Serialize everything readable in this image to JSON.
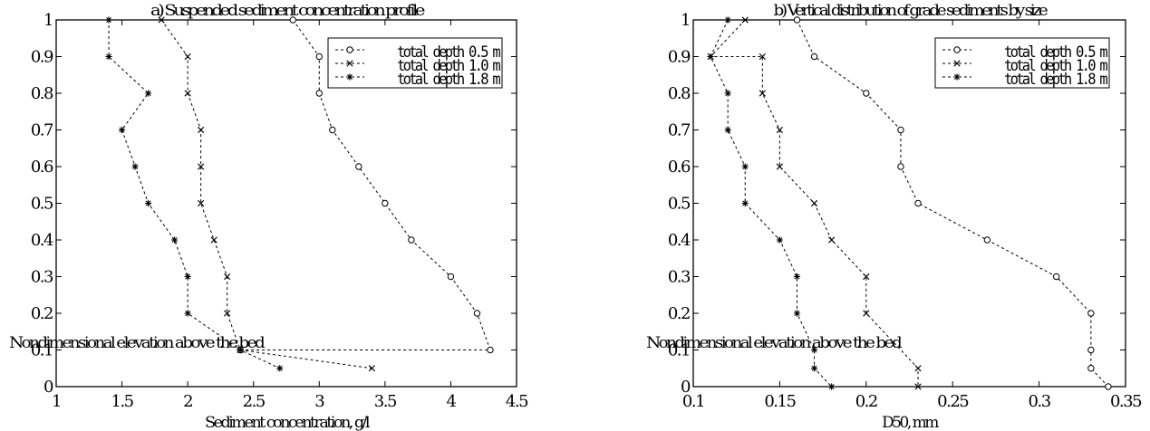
{
  "chart_data": [
    {
      "type": "line",
      "title": "a) Suspended sediment concentration profile",
      "xlabel": "Sediment concentration, g/l",
      "ylabel": "Nondimensional elevation above the bed",
      "xlim": [
        1,
        4.5
      ],
      "ylim": [
        0,
        1
      ],
      "xticks": [
        "1",
        "1.5",
        "2",
        "2.5",
        "3",
        "3.5",
        "4",
        "4.5"
      ],
      "yticks": [
        "0",
        "0.1",
        "0.2",
        "0.3",
        "0.4",
        "0.5",
        "0.6",
        "0.7",
        "0.8",
        "0.9",
        "1"
      ],
      "grid": false,
      "legend_position": "top-right",
      "series": [
        {
          "name": "total depth 0.5 m",
          "marker": "o",
          "x": [
            2.8,
            3.0,
            3.0,
            3.1,
            3.3,
            3.5,
            3.7,
            4.0,
            4.2,
            4.3,
            2.4
          ],
          "y": [
            1.0,
            0.9,
            0.8,
            0.7,
            0.6,
            0.5,
            0.4,
            0.3,
            0.2,
            0.1,
            0.1
          ]
        },
        {
          "name": "total depth 1.0 m",
          "marker": "x",
          "x": [
            1.8,
            2.0,
            2.0,
            2.1,
            2.1,
            2.1,
            2.2,
            2.3,
            2.3,
            2.4,
            3.4
          ],
          "y": [
            1.0,
            0.9,
            0.8,
            0.7,
            0.6,
            0.5,
            0.4,
            0.3,
            0.2,
            0.1,
            0.05
          ]
        },
        {
          "name": "total depth 1.8 m",
          "marker": "*",
          "x": [
            1.4,
            1.4,
            1.7,
            1.5,
            1.6,
            1.7,
            1.9,
            2.0,
            2.0,
            2.4,
            2.7
          ],
          "y": [
            1.0,
            0.9,
            0.8,
            0.7,
            0.6,
            0.5,
            0.4,
            0.3,
            0.2,
            0.1,
            0.05
          ]
        }
      ]
    },
    {
      "type": "line",
      "title": "b) Vertical distribution of grade sediments by size",
      "xlabel": "D50, mm",
      "ylabel": "Nondimensional elevation above the bed",
      "xlim": [
        0.1,
        0.35
      ],
      "ylim": [
        0,
        1
      ],
      "xticks": [
        "0.1",
        "0.15",
        "0.2",
        "0.25",
        "0.3",
        "0.35"
      ],
      "yticks": [
        "0",
        "0.1",
        "0.2",
        "0.3",
        "0.4",
        "0.5",
        "0.6",
        "0.7",
        "0.8",
        "0.9",
        "1"
      ],
      "grid": false,
      "legend_position": "top-right",
      "series": [
        {
          "name": "total depth 0.5 m",
          "marker": "o",
          "x": [
            0.16,
            0.17,
            0.2,
            0.22,
            0.22,
            0.23,
            0.27,
            0.31,
            0.33,
            0.33,
            0.33,
            0.34
          ],
          "y": [
            1.0,
            0.9,
            0.8,
            0.7,
            0.6,
            0.5,
            0.4,
            0.3,
            0.2,
            0.1,
            0.05,
            0.0
          ]
        },
        {
          "name": "total depth 1.0 m",
          "marker": "x",
          "x": [
            0.13,
            0.11,
            0.14,
            0.14,
            0.15,
            0.15,
            0.17,
            0.18,
            0.2,
            0.2,
            0.23,
            0.23
          ],
          "y": [
            1.0,
            0.9,
            0.9,
            0.8,
            0.7,
            0.6,
            0.5,
            0.4,
            0.3,
            0.2,
            0.05,
            0.0
          ]
        },
        {
          "name": "total depth 1.8 m",
          "marker": "*",
          "x": [
            0.12,
            0.11,
            0.12,
            0.12,
            0.13,
            0.13,
            0.15,
            0.16,
            0.16,
            0.17,
            0.17,
            0.18
          ],
          "y": [
            1.0,
            0.9,
            0.8,
            0.7,
            0.6,
            0.5,
            0.4,
            0.3,
            0.2,
            0.1,
            0.05,
            0.0
          ]
        }
      ]
    }
  ]
}
